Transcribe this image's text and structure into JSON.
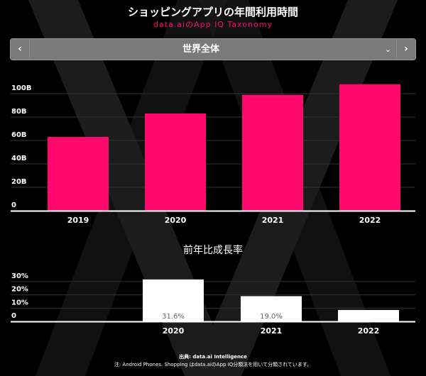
{
  "header": {
    "title": "ショッピングアプリの年間利用時間",
    "subtitle": "data.aiのApp IQ Taxonomy"
  },
  "selector": {
    "value": "世界全体",
    "prev_icon": "chevron-left-icon",
    "next_icon": "chevron-right-icon",
    "dropdown_icon": "chevron-down-icon"
  },
  "colors": {
    "bar_primary": "#ff0a6c",
    "bar_growth": "#ffffff",
    "background": "#000000"
  },
  "chart_data": [
    {
      "type": "bar",
      "categories": [
        "2019",
        "2020",
        "2021",
        "2022"
      ],
      "values": [
        63,
        83,
        99,
        108
      ],
      "unit": "B",
      "ylim": [
        0,
        110
      ],
      "yticks": [
        "0",
        "20B",
        "40B",
        "60B",
        "80B",
        "100B"
      ],
      "ytick_values": [
        0,
        20,
        40,
        60,
        80,
        100
      ],
      "grid": true
    },
    {
      "type": "bar",
      "title": "前年比成長率",
      "categories": [
        "2020",
        "2021",
        "2022"
      ],
      "values": [
        31.6,
        19.0,
        8.6
      ],
      "data_labels": [
        "31.6%",
        "19.0%",
        ""
      ],
      "ylim": [
        0,
        35
      ],
      "yticks": [
        "0",
        "10%",
        "20%",
        "30%"
      ],
      "ytick_values": [
        0,
        10,
        20,
        30
      ],
      "grid": true
    }
  ],
  "footer": {
    "source": "出典: data.ai Intelligence",
    "note": "注: Android Phones. Shopping はdata.aiのApp IQ分類法を用いて分類されています。"
  }
}
